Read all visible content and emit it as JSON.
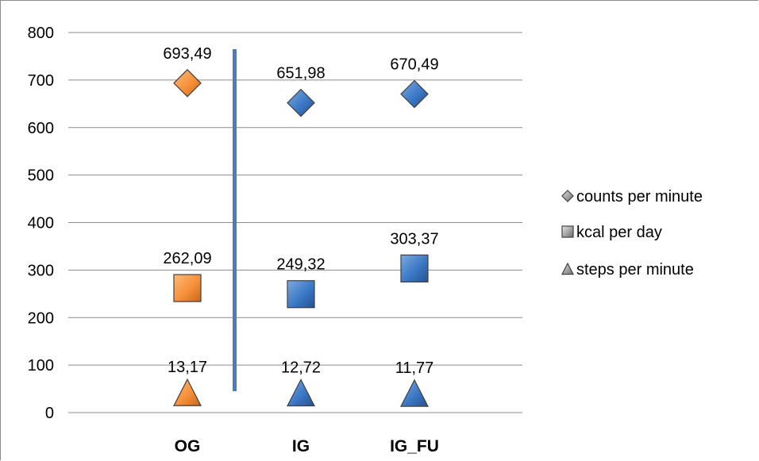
{
  "chart_data": {
    "type": "scatter",
    "categories": [
      "OG",
      "IG",
      "IG_FU"
    ],
    "ylim": [
      0,
      800
    ],
    "yticks": [
      0,
      100,
      200,
      300,
      400,
      500,
      600,
      700,
      800
    ],
    "grid": true,
    "legend_position": "right",
    "series": [
      {
        "name": "counts per minute",
        "marker": "diamond",
        "values": [
          693.49,
          651.98,
          670.49
        ],
        "labels": [
          "693,49",
          "651,98",
          "670,49"
        ]
      },
      {
        "name": "kcal per day",
        "marker": "square",
        "values": [
          262.09,
          249.32,
          303.37
        ],
        "labels": [
          "262,09",
          "249,32",
          "303,37"
        ]
      },
      {
        "name": "steps per minute",
        "marker": "triangle",
        "values": [
          13.17,
          12.72,
          11.77
        ],
        "labels": [
          "13,17",
          "12,72",
          "11,77"
        ]
      }
    ],
    "point_colors": [
      "#f7903a",
      "#3b78c6",
      "#3b78c6"
    ],
    "divider": {
      "between": [
        "OG",
        "IG"
      ],
      "from": 45,
      "to": 765,
      "color": "#4a7ebb"
    },
    "legend_marker_color": "#9a9a9a"
  }
}
